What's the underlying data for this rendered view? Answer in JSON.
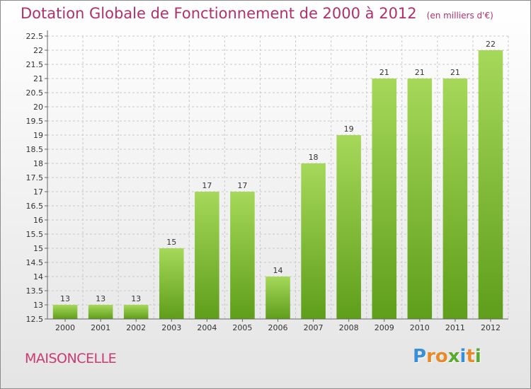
{
  "title": "Dotation Globale de Fonctionnement de 2000 à 2012",
  "unit": "(en milliers d'€)",
  "commune": "MAISONCELLE",
  "logo": {
    "text": "Proxiti",
    "colors": [
      "#3a8fd6",
      "#e8892a",
      "#e8892a",
      "#5aaa2e",
      "#3a8fd6",
      "#e8892a",
      "#5aaa2e"
    ]
  },
  "colors": {
    "title": "#b0306b",
    "bar_light": "#a6d85a",
    "bar_dark": "#5e9e1a",
    "grid": "#c8c8c8",
    "axis": "#666666"
  },
  "chart_data": {
    "type": "bar",
    "categories": [
      "2000",
      "2001",
      "2002",
      "2003",
      "2004",
      "2005",
      "2006",
      "2007",
      "2008",
      "2009",
      "2010",
      "2011",
      "2012"
    ],
    "values": [
      13,
      13,
      13,
      15,
      17,
      17,
      14,
      18,
      19,
      21,
      21,
      21,
      22
    ],
    "data_labels": [
      "13",
      "13",
      "13",
      "15",
      "17",
      "17",
      "14",
      "18",
      "19",
      "21",
      "21",
      "21",
      "22"
    ],
    "ylim": [
      12.5,
      22.5
    ],
    "yticks": [
      "12.5",
      "13",
      "13.5",
      "14",
      "14.5",
      "15",
      "15.5",
      "16",
      "16.5",
      "17",
      "17.5",
      "18",
      "18.5",
      "19",
      "19.5",
      "20",
      "20.5",
      "21",
      "21.5",
      "22",
      "22.5"
    ],
    "grid": true
  }
}
